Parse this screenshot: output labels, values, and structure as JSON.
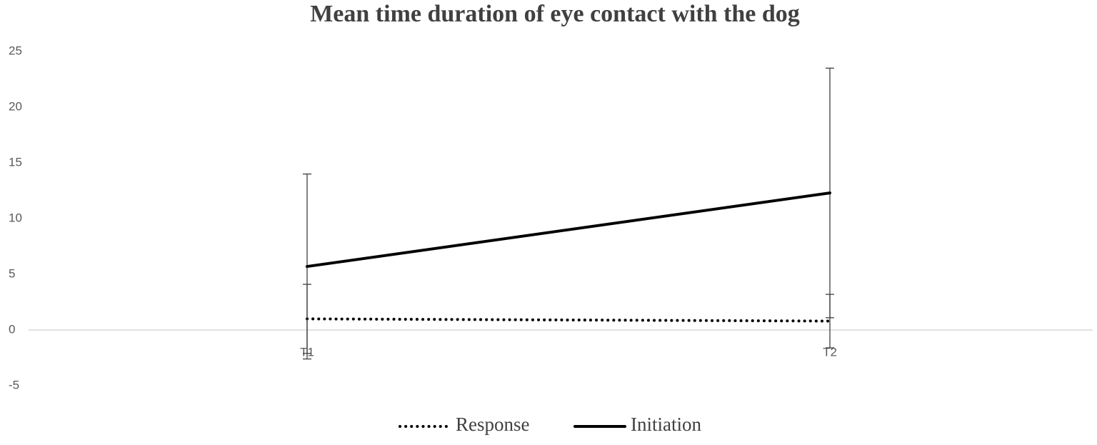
{
  "chart_data": {
    "type": "line",
    "title": "Mean time duration of eye contact with the dog",
    "categories": [
      "T1",
      "T2"
    ],
    "series": [
      {
        "name": "Response",
        "color": "#000000",
        "style": "dotted",
        "values": [
          1.0,
          0.8
        ],
        "errors": [
          3.1,
          2.4
        ]
      },
      {
        "name": "Initiation",
        "color": "#000000",
        "style": "solid",
        "values": [
          5.7,
          12.3
        ],
        "errors": [
          8.3,
          11.2
        ]
      }
    ],
    "ylim": [
      -5,
      25
    ],
    "yticks": [
      -5,
      0,
      5,
      10,
      15,
      20,
      25
    ],
    "grid": false,
    "legend": "bottom"
  }
}
